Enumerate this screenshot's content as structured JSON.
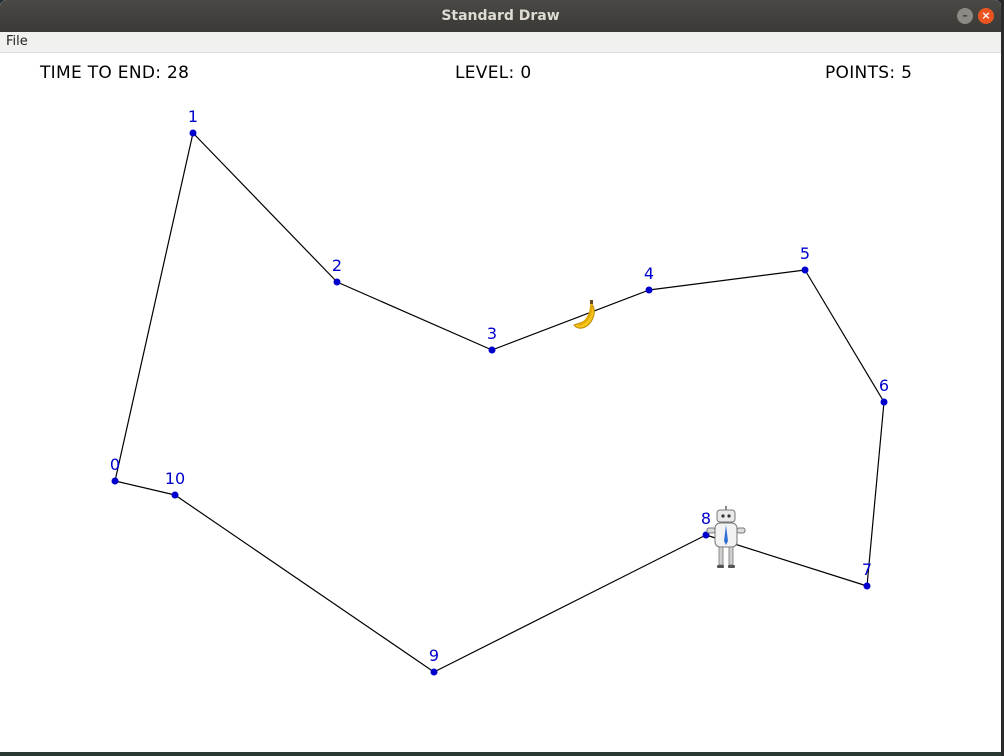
{
  "window": {
    "title": "Standard Draw"
  },
  "menu": {
    "file_label": "File"
  },
  "hud": {
    "time_label": "TIME TO END:",
    "time_value": "28",
    "level_label": "LEVEL:",
    "level_value": "0",
    "points_label": "POINTS:",
    "points_value": "5"
  },
  "colors": {
    "node": "#0000cd",
    "edge": "#000000",
    "label": "#0000cd"
  },
  "nodes": [
    {
      "label": "0"
    },
    {
      "label": "1"
    },
    {
      "label": "2"
    },
    {
      "label": "3"
    },
    {
      "label": "4"
    },
    {
      "label": "5"
    },
    {
      "label": "6"
    },
    {
      "label": "7"
    },
    {
      "label": "8"
    },
    {
      "label": "9"
    },
    {
      "label": "10"
    }
  ],
  "sprites": {
    "banana": "banana-icon",
    "robot": "robot-icon"
  }
}
